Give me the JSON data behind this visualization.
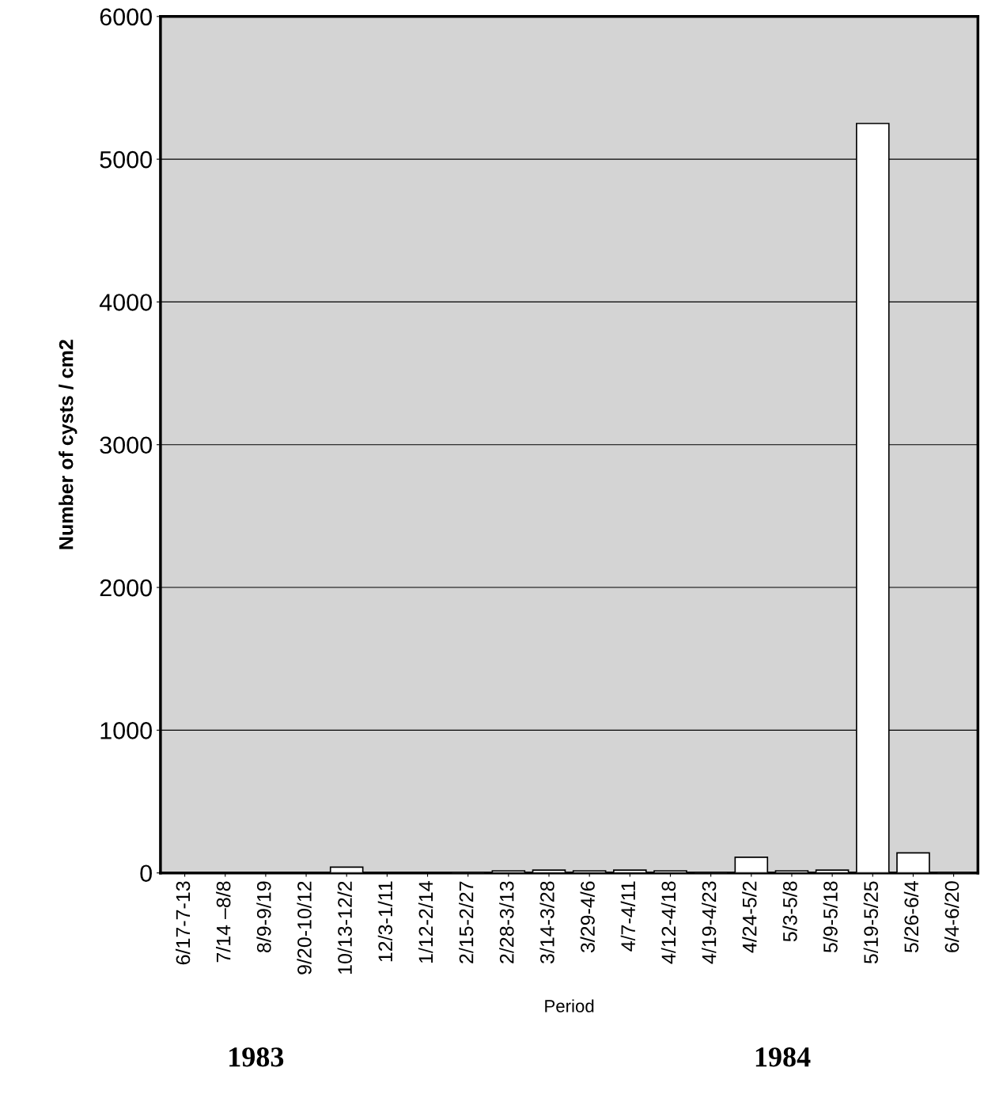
{
  "chart_data": {
    "type": "bar",
    "ylabel": "Number of cysts / cm2",
    "xlabel": "Period",
    "categories": [
      "6/17-7-13",
      "7/14 –8/8",
      "8/9-9/19",
      "9/20-10/12",
      "10/13-12/2",
      "12/3-1/11",
      "1/12-2/14",
      "2/15-2/27",
      "2/28-3/13",
      "3/14-3/28",
      "3/29-4/6",
      "4/7-4/11",
      "4/12-4/18",
      "4/19-4/23",
      "4/24-5/2",
      "5/3-5/8",
      "5/9-5/18",
      "5/19-5/25",
      "5/26-6/4",
      "6/4-6/20"
    ],
    "values": [
      0,
      0,
      0,
      0,
      40,
      0,
      0,
      5,
      15,
      20,
      15,
      20,
      15,
      5,
      110,
      15,
      20,
      5250,
      140,
      5
    ],
    "color": "#ffffff",
    "ylim": [
      0,
      6000
    ],
    "yticks": [
      0,
      1000,
      2000,
      3000,
      4000,
      5000,
      6000
    ],
    "grid": "y",
    "annotations": [
      "1983",
      "1984"
    ]
  }
}
